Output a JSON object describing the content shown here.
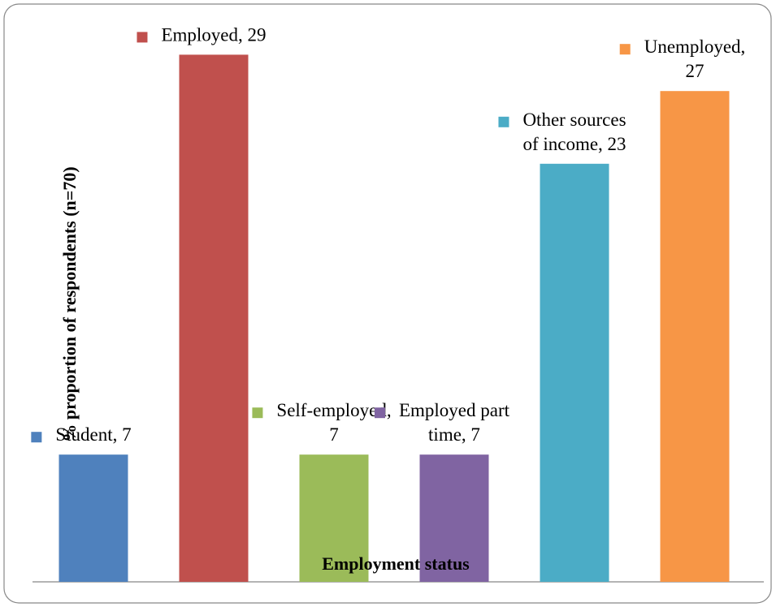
{
  "chart_data": {
    "type": "bar",
    "x_label": "Employment status",
    "y_label": "% proportion of respondents (n=70)",
    "values": [
      7,
      29,
      7,
      7,
      23,
      27
    ],
    "value_labels": [
      "Student, 7",
      "Employed, 29",
      "Self-employed, 7",
      "Employed part time, 7",
      "Other sources of income, 23",
      "Unemployed, 27"
    ],
    "colors": [
      "#4f81bd",
      "#c0504d",
      "#9bbb59",
      "#8064a2",
      "#4bacc6",
      "#f79646"
    ],
    "ylim": [
      0,
      30
    ]
  }
}
